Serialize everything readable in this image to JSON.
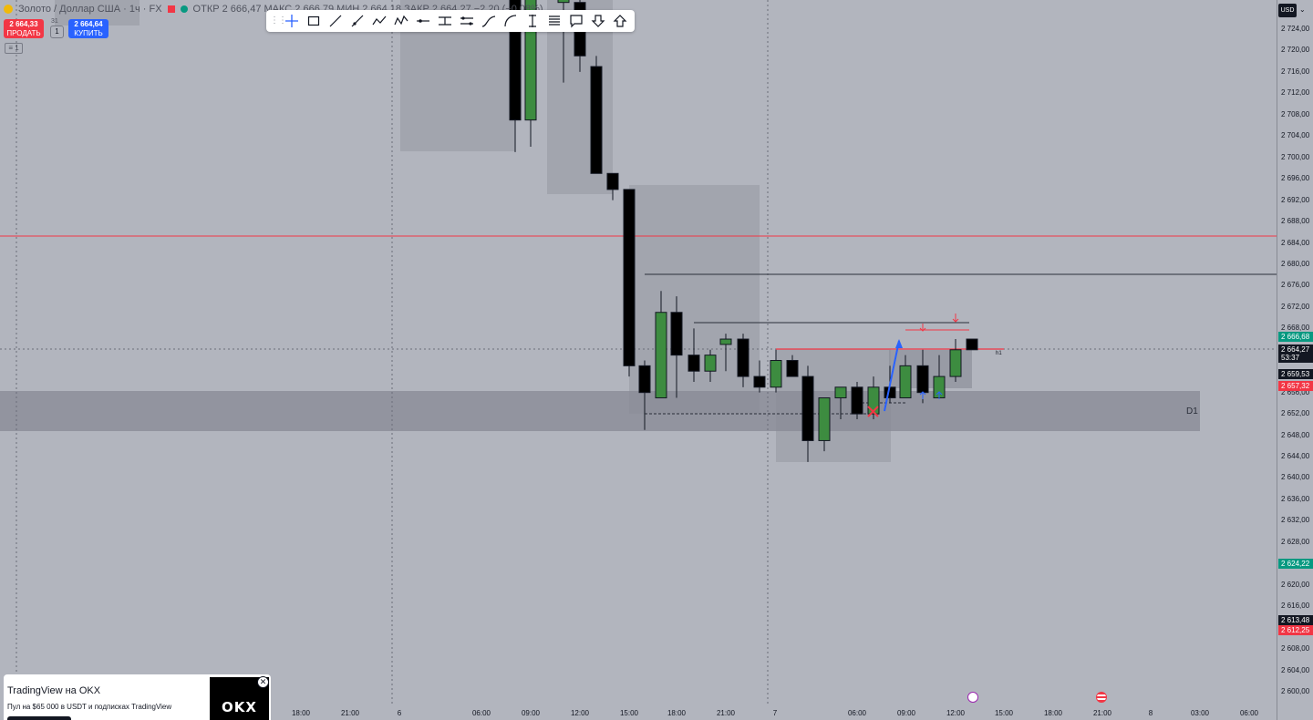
{
  "header": {
    "symbol": "Золото / Доллар США · 1ч · FX",
    "ohlc": "ОТКР 2 666,47  МАКС 2 666,79  МИН 2 664,18  ЗАКР 2 664,27  −2,20 (−0,08%)"
  },
  "trade": {
    "sell_price": "2 664,33",
    "sell_label": "ПРОДАТЬ",
    "buy_price": "2 664,64",
    "buy_label": "КУПИТЬ",
    "spread": "31",
    "qty": "1",
    "collapse": "≡ 1"
  },
  "toolbar": {
    "tools": [
      "crosshair",
      "rectangle",
      "trend-line",
      "ray",
      "path",
      "polyline",
      "horizontal-line",
      "price-range",
      "date-range",
      "curve",
      "arc",
      "projection",
      "vertical-line",
      "text-lines",
      "callout",
      "arrow-down",
      "arrow-up"
    ]
  },
  "currency": "USD",
  "price_axis": {
    "labels": [
      "2 724,00",
      "2 720,00",
      "2 716,00",
      "2 712,00",
      "2 708,00",
      "2 704,00",
      "2 700,00",
      "2 696,00",
      "2 692,00",
      "2 688,00",
      "2 684,00",
      "2 680,00",
      "2 676,00",
      "2 672,00",
      "2 668,00",
      "2 656,00",
      "2 652,00",
      "2 648,00",
      "2 644,00",
      "2 640,00",
      "2 636,00",
      "2 632,00",
      "2 628,00",
      "2 620,00",
      "2 616,00",
      "2 608,00",
      "2 604,00",
      "2 600,00"
    ],
    "tags": [
      {
        "text": "2 666,68",
        "bg": "#089981",
        "fg": "#ffffff"
      },
      {
        "text": "2 664,27",
        "bg": "#131722",
        "fg": "#ffffff"
      },
      {
        "text": "53:37",
        "bg": "#131722",
        "fg": "#ffffff"
      },
      {
        "text": "2 659,53",
        "bg": "#131722",
        "fg": "#ffffff"
      },
      {
        "text": "2 657,32",
        "bg": "#f23645",
        "fg": "#ffffff"
      },
      {
        "text": "2 624,22",
        "bg": "#089981",
        "fg": "#ffffff"
      },
      {
        "text": "2 613,48",
        "bg": "#131722",
        "fg": "#ffffff"
      },
      {
        "text": "2 612,25",
        "bg": "#f23645",
        "fg": "#ffffff"
      }
    ]
  },
  "time_axis": [
    "18:00",
    "21:00",
    "6",
    "06:00",
    "09:00",
    "12:00",
    "15:00",
    "18:00",
    "21:00",
    "7",
    "06:00",
    "09:00",
    "12:00",
    "15:00",
    "18:00",
    "21:00",
    "8",
    "03:00",
    "06:00"
  ],
  "labels": {
    "zone": "D1",
    "line": "h1"
  },
  "ad": {
    "title": "TradingView на OKX",
    "subtitle": "Пул на $65 000 в USDT и подписках TradingView",
    "logo": "OKX",
    "close": "✕"
  },
  "colors": {
    "up": "#3d8c40",
    "down": "#000000",
    "red_line": "#f23645",
    "blue_arrow": "#2962ff",
    "zone": "#9598a1"
  }
}
